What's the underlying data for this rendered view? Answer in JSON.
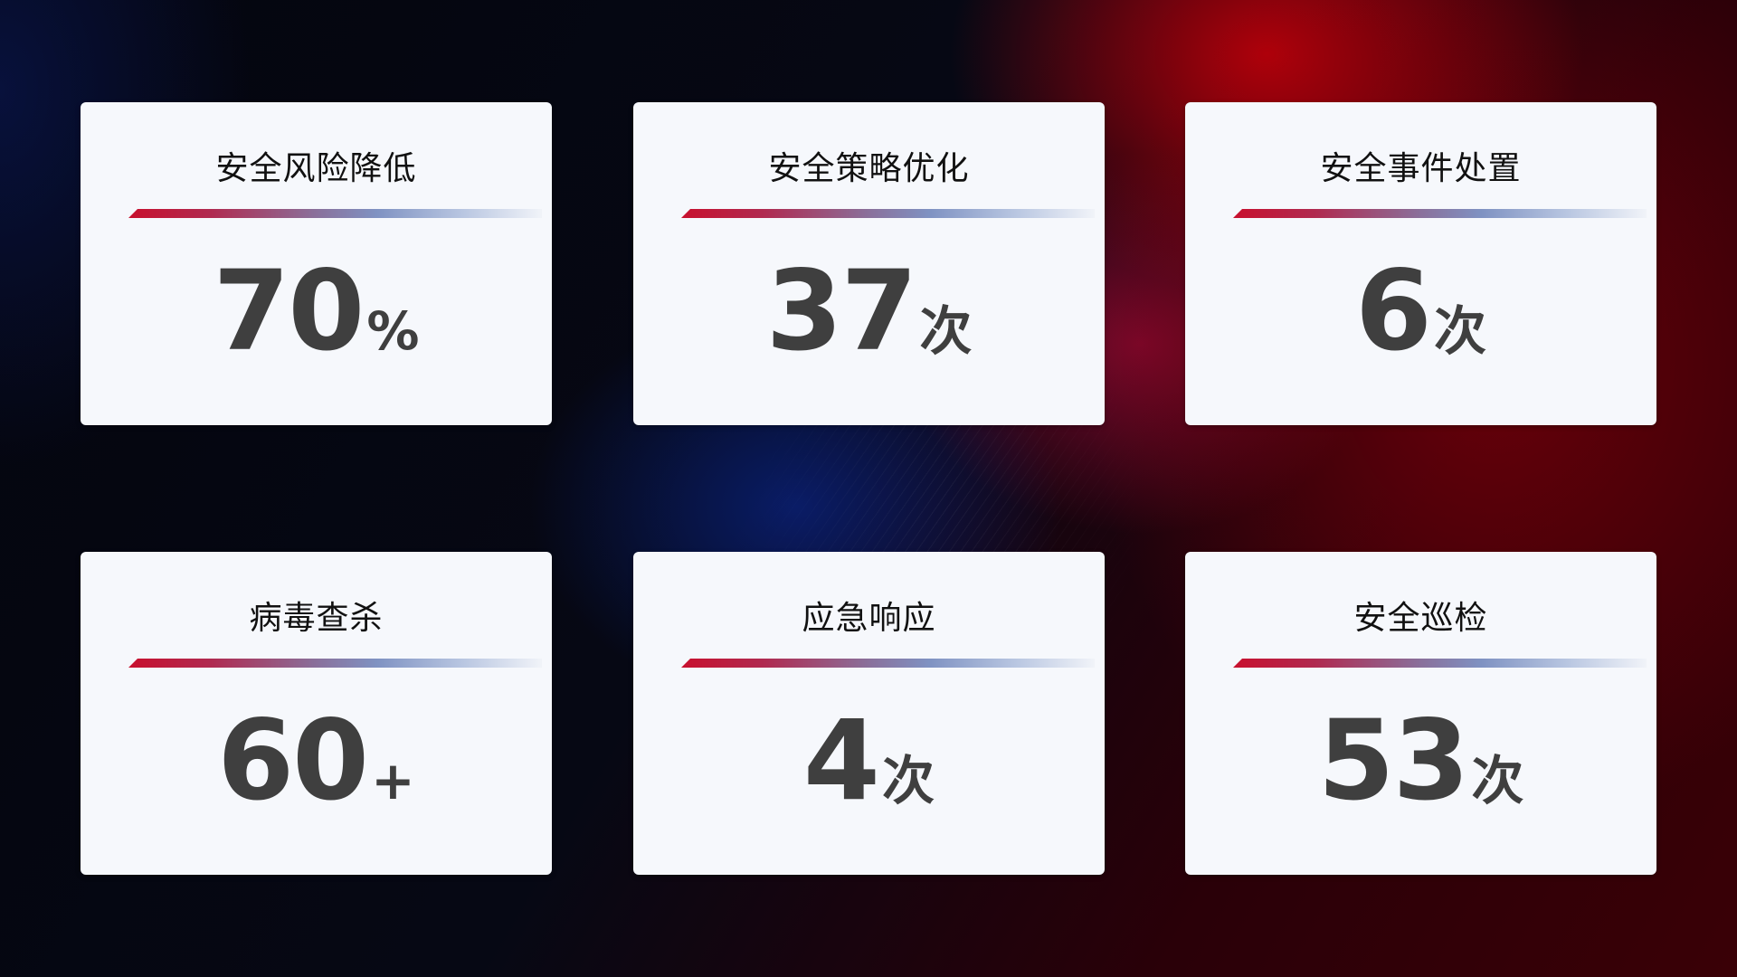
{
  "cards": [
    {
      "title": "安全风险降低",
      "value": "70",
      "unit": "%"
    },
    {
      "title": "安全策略优化",
      "value": "37",
      "unit": "次"
    },
    {
      "title": "安全事件处置",
      "value": "6",
      "unit": "次"
    },
    {
      "title": "病毒查杀",
      "value": "60",
      "unit": "+"
    },
    {
      "title": "应急响应",
      "value": "4",
      "unit": "次"
    },
    {
      "title": "安全巡检",
      "value": "53",
      "unit": "次"
    }
  ],
  "colors": {
    "accent_red": "#c8102e",
    "accent_blue": "#7f92c2",
    "card_bg": "#f6f8fc",
    "value_text": "#3f3f3f"
  }
}
